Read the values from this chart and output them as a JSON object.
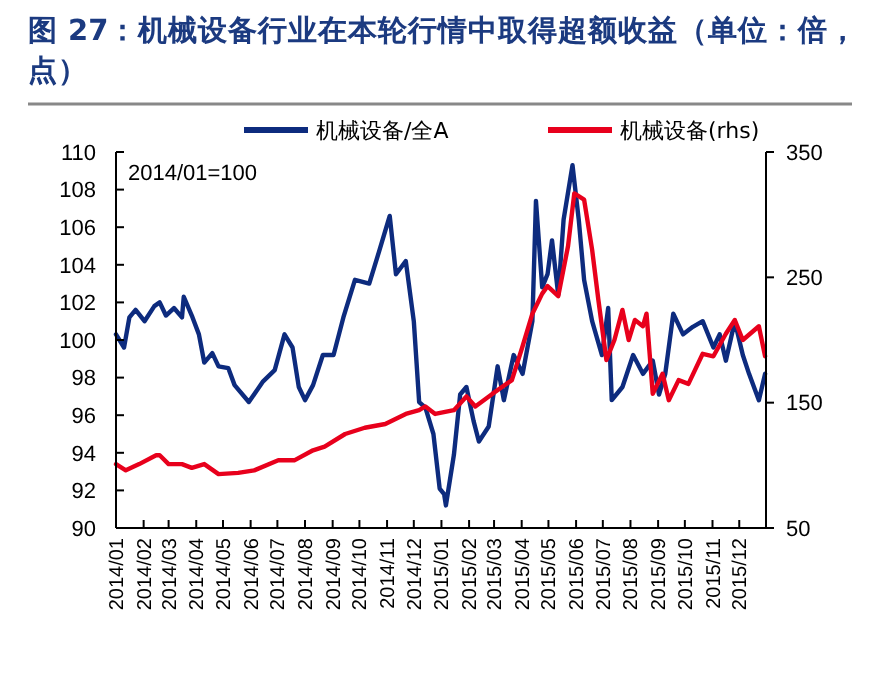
{
  "chart_data": {
    "type": "line",
    "title": "图 27：机械设备行业在本轮行情中取得超额收益（单位：倍，点）",
    "annotations": [
      "2014/01=100"
    ],
    "legend": "top",
    "grid": false,
    "line_style": "solid",
    "xlim": [
      "2014-01-01",
      "2015-12-31"
    ],
    "xticks": [
      {
        "value": "2014-01-01",
        "label": "2014/01"
      },
      {
        "value": "2014-02-01",
        "label": "2014/02"
      },
      {
        "value": "2014-03-01",
        "label": "2014/03"
      },
      {
        "value": "2014-04-01",
        "label": "2014/04"
      },
      {
        "value": "2014-05-01",
        "label": "2014/05"
      },
      {
        "value": "2014-06-01",
        "label": "2014/06"
      },
      {
        "value": "2014-07-01",
        "label": "2014/07"
      },
      {
        "value": "2014-08-01",
        "label": "2014/08"
      },
      {
        "value": "2014-09-01",
        "label": "2014/09"
      },
      {
        "value": "2014-10-01",
        "label": "2014/10"
      },
      {
        "value": "2014-11-01",
        "label": "2014/11"
      },
      {
        "value": "2014-12-01",
        "label": "2014/12"
      },
      {
        "value": "2015-01-01",
        "label": "2015/01"
      },
      {
        "value": "2015-02-01",
        "label": "2015/02"
      },
      {
        "value": "2015-03-01",
        "label": "2015/03"
      },
      {
        "value": "2015-04-01",
        "label": "2015/04"
      },
      {
        "value": "2015-05-01",
        "label": "2015/05"
      },
      {
        "value": "2015-06-01",
        "label": "2015/06"
      },
      {
        "value": "2015-07-01",
        "label": "2015/07"
      },
      {
        "value": "2015-08-01",
        "label": "2015/08"
      },
      {
        "value": "2015-09-01",
        "label": "2015/09"
      },
      {
        "value": "2015-10-01",
        "label": "2015/10"
      },
      {
        "value": "2015-11-01",
        "label": "2015/11"
      },
      {
        "value": "2015-12-01",
        "label": "2015/12"
      }
    ],
    "ylim": [
      90,
      110
    ],
    "yticks": [
      90,
      92,
      94,
      96,
      98,
      100,
      102,
      104,
      106,
      108,
      110
    ],
    "y2lim": [
      50,
      350
    ],
    "y2ticks": [
      50,
      150,
      250,
      350
    ],
    "series": [
      {
        "name": "机械设备/全A",
        "color": "#0d2b7e",
        "x": [
          "2014-01-01",
          "2014-01-10",
          "2014-01-16",
          "2014-01-23",
          "2014-02-02",
          "2014-02-13",
          "2014-02-19",
          "2014-02-26",
          "2014-03-07",
          "2014-03-16",
          "2014-03-18",
          "2014-03-27",
          "2014-04-04",
          "2014-04-10",
          "2014-04-19",
          "2014-04-26",
          "2014-05-07",
          "2014-05-14",
          "2014-05-30",
          "2014-06-15",
          "2014-06-28",
          "2014-07-09",
          "2014-07-18",
          "2014-07-25",
          "2014-08-01",
          "2014-08-10",
          "2014-08-21",
          "2014-09-02",
          "2014-09-13",
          "2014-09-26",
          "2014-10-12",
          "2014-10-23",
          "2014-11-04",
          "2014-11-11",
          "2014-11-22",
          "2014-12-01",
          "2014-12-07",
          "2014-12-14",
          "2014-12-23",
          "2014-12-30",
          "2015-01-04",
          "2015-01-06",
          "2015-01-15",
          "2015-01-22",
          "2015-01-29",
          "2015-02-06",
          "2015-02-12",
          "2015-02-23",
          "2015-03-05",
          "2015-03-12",
          "2015-03-23",
          "2015-04-02",
          "2015-04-13",
          "2015-04-17",
          "2015-04-24",
          "2015-04-30",
          "2015-05-05",
          "2015-05-12",
          "2015-05-18",
          "2015-05-28",
          "2015-06-04",
          "2015-06-10",
          "2015-06-19",
          "2015-06-30",
          "2015-07-07",
          "2015-07-11",
          "2015-07-23",
          "2015-08-04",
          "2015-08-15",
          "2015-08-26",
          "2015-09-02",
          "2015-09-09",
          "2015-09-18",
          "2015-09-29",
          "2015-10-10",
          "2015-10-21",
          "2015-11-02",
          "2015-11-09",
          "2015-11-16",
          "2015-11-26",
          "2015-12-05",
          "2015-12-12",
          "2015-12-23",
          "2015-12-30"
        ],
        "values": [
          100.3,
          99.6,
          101.2,
          101.6,
          101.0,
          101.8,
          102.0,
          101.3,
          101.7,
          101.2,
          102.3,
          101.3,
          100.3,
          98.8,
          99.3,
          98.6,
          98.5,
          97.6,
          96.7,
          97.8,
          98.4,
          100.3,
          99.6,
          97.5,
          96.8,
          97.6,
          99.2,
          99.2,
          101.2,
          103.2,
          103.0,
          104.7,
          106.6,
          103.5,
          104.2,
          101.0,
          96.7,
          96.4,
          95.0,
          92.1,
          91.8,
          91.2,
          93.9,
          97.1,
          97.5,
          95.7,
          94.6,
          95.4,
          98.6,
          96.8,
          99.2,
          98.2,
          101.0,
          107.4,
          102.8,
          103.5,
          105.3,
          102.4,
          106.4,
          109.3,
          106.4,
          103.2,
          101.0,
          99.2,
          101.7,
          96.8,
          97.5,
          99.2,
          98.2,
          98.9,
          97.1,
          98.2,
          101.4,
          100.3,
          100.7,
          101.0,
          99.6,
          100.3,
          98.9,
          101.0,
          99.2,
          98.2,
          96.8,
          98.2
        ]
      },
      {
        "name": "机械设备(rhs)",
        "color": "#e8001c",
        "axis": "y2",
        "x": [
          "2014-01-01",
          "2014-01-12",
          "2014-01-27",
          "2014-02-15",
          "2014-02-19",
          "2014-03-01",
          "2014-03-16",
          "2014-03-27",
          "2014-04-10",
          "2014-04-26",
          "2014-05-18",
          "2014-06-05",
          "2014-07-02",
          "2014-07-20",
          "2014-08-10",
          "2014-08-23",
          "2014-09-15",
          "2014-10-07",
          "2014-10-30",
          "2014-11-22",
          "2014-12-07",
          "2014-12-14",
          "2014-12-25",
          "2015-01-15",
          "2015-01-29",
          "2015-02-08",
          "2015-02-27",
          "2015-03-21",
          "2015-04-02",
          "2015-04-13",
          "2015-04-24",
          "2015-04-30",
          "2015-05-12",
          "2015-05-23",
          "2015-05-30",
          "2015-06-10",
          "2015-06-19",
          "2015-06-26",
          "2015-07-05",
          "2015-07-14",
          "2015-07-23",
          "2015-07-30",
          "2015-08-06",
          "2015-08-15",
          "2015-08-19",
          "2015-08-26",
          "2015-09-06",
          "2015-09-13",
          "2015-09-24",
          "2015-10-05",
          "2015-10-21",
          "2015-11-02",
          "2015-11-16",
          "2015-11-26",
          "2015-12-05",
          "2015-12-23",
          "2015-12-30"
        ],
        "values": [
          101,
          96,
          101,
          108,
          108,
          101,
          101,
          98,
          101,
          93,
          94,
          96,
          104,
          104,
          112,
          115,
          125,
          130,
          133,
          141,
          144,
          147,
          141,
          144,
          155,
          147,
          157,
          168,
          195,
          221,
          237,
          243,
          235,
          275,
          317,
          312,
          272,
          232,
          184,
          200,
          224,
          200,
          216,
          211,
          221,
          157,
          173,
          152,
          168,
          165,
          189,
          187,
          205,
          216,
          200,
          211,
          187
        ]
      }
    ]
  }
}
